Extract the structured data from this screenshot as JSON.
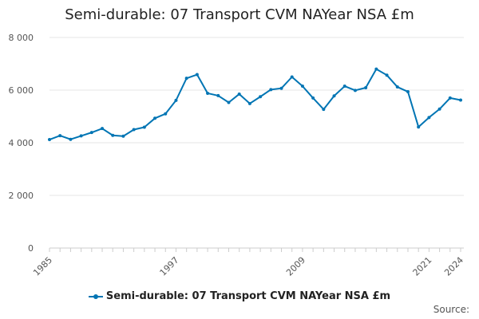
{
  "chart_data": {
    "type": "line",
    "title": "Semi-durable: 07 Transport CVM NAYear NSA £m",
    "x": [
      1985,
      1986,
      1987,
      1988,
      1989,
      1990,
      1991,
      1992,
      1993,
      1994,
      1995,
      1996,
      1997,
      1998,
      1999,
      2000,
      2001,
      2002,
      2003,
      2004,
      2005,
      2006,
      2007,
      2008,
      2009,
      2010,
      2011,
      2012,
      2013,
      2014,
      2015,
      2016,
      2017,
      2018,
      2019,
      2020,
      2021,
      2022,
      2023,
      2024
    ],
    "series": [
      {
        "name": "Semi-durable: 07 Transport CVM NAYear NSA £m",
        "values": [
          4120,
          4270,
          4130,
          4260,
          4390,
          4540,
          4280,
          4250,
          4500,
          4590,
          4930,
          5100,
          5610,
          6450,
          6590,
          5880,
          5790,
          5530,
          5850,
          5490,
          5750,
          6020,
          6070,
          6500,
          6150,
          5700,
          5270,
          5780,
          6150,
          5990,
          6090,
          6800,
          6570,
          6120,
          5940,
          4600,
          4960,
          5280,
          5700,
          5620
        ]
      }
    ],
    "xticks": [
      "1985",
      "1997",
      "2009",
      "2021",
      "2024"
    ],
    "yticks": [
      "0",
      "2 000",
      "4 000",
      "6 000",
      "8 000"
    ],
    "ylim": [
      0,
      8000
    ],
    "grid": true,
    "legend_position": "bottom",
    "color": "#0075b4"
  },
  "source_label": "Source:"
}
